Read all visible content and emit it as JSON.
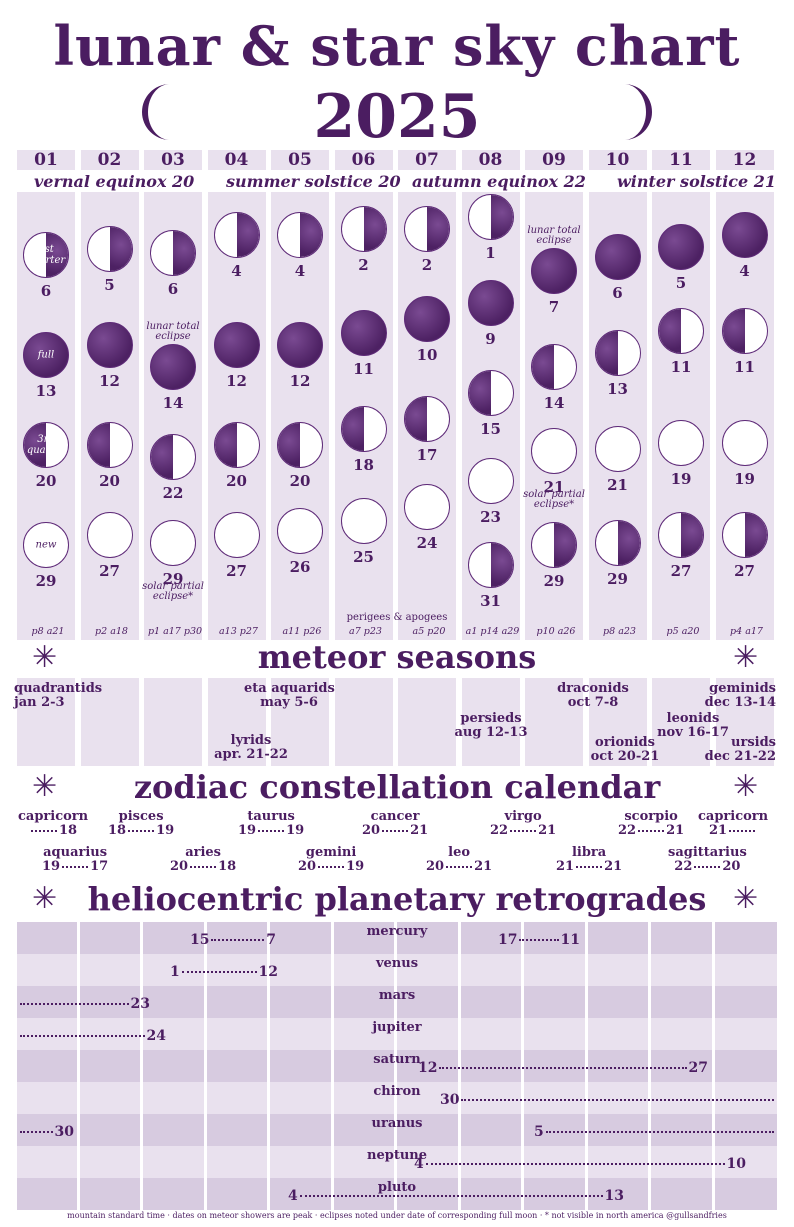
{
  "title": "lunar & star sky chart",
  "year": "2025",
  "months": [
    "01",
    "02",
    "03",
    "04",
    "05",
    "06",
    "07",
    "08",
    "09",
    "10",
    "11",
    "12"
  ],
  "seasons": [
    {
      "label": "vernal equinox",
      "day": "20"
    },
    {
      "label": "summer solstice",
      "day": "20"
    },
    {
      "label": "autumn equinox",
      "day": "22"
    },
    {
      "label": "winter solstice",
      "day": "21"
    }
  ],
  "moons": [
    {
      "month": "01",
      "day": "6",
      "phase": "first-quarter",
      "text": "1st quarter"
    },
    {
      "month": "01",
      "day": "13",
      "phase": "full",
      "text": "full"
    },
    {
      "month": "01",
      "day": "20",
      "phase": "third-quarter",
      "text": "3rd quarter"
    },
    {
      "month": "01",
      "day": "29",
      "phase": "new",
      "text": "new"
    },
    {
      "month": "02",
      "day": "5",
      "phase": "first-quarter"
    },
    {
      "month": "02",
      "day": "12",
      "phase": "full"
    },
    {
      "month": "02",
      "day": "20",
      "phase": "third-quarter"
    },
    {
      "month": "02",
      "day": "27",
      "phase": "new"
    },
    {
      "month": "03",
      "day": "6",
      "phase": "first-quarter"
    },
    {
      "month": "03",
      "day": "14",
      "phase": "full",
      "note": "lunar total eclipse"
    },
    {
      "month": "03",
      "day": "22",
      "phase": "third-quarter"
    },
    {
      "month": "03",
      "day": "29",
      "phase": "new",
      "note": "solar partial eclipse*"
    },
    {
      "month": "04",
      "day": "4",
      "phase": "first-quarter"
    },
    {
      "month": "04",
      "day": "12",
      "phase": "full"
    },
    {
      "month": "04",
      "day": "20",
      "phase": "third-quarter"
    },
    {
      "month": "04",
      "day": "27",
      "phase": "new"
    },
    {
      "month": "05",
      "day": "4",
      "phase": "first-quarter"
    },
    {
      "month": "05",
      "day": "12",
      "phase": "full"
    },
    {
      "month": "05",
      "day": "20",
      "phase": "third-quarter"
    },
    {
      "month": "05",
      "day": "26",
      "phase": "new"
    },
    {
      "month": "06",
      "day": "2",
      "phase": "first-quarter"
    },
    {
      "month": "06",
      "day": "11",
      "phase": "full"
    },
    {
      "month": "06",
      "day": "18",
      "phase": "third-quarter"
    },
    {
      "month": "06",
      "day": "25",
      "phase": "new"
    },
    {
      "month": "07",
      "day": "2",
      "phase": "first-quarter"
    },
    {
      "month": "07",
      "day": "10",
      "phase": "full"
    },
    {
      "month": "07",
      "day": "17",
      "phase": "third-quarter"
    },
    {
      "month": "07",
      "day": "24",
      "phase": "new"
    },
    {
      "month": "08",
      "day": "1",
      "phase": "first-quarter"
    },
    {
      "month": "08",
      "day": "9",
      "phase": "full"
    },
    {
      "month": "08",
      "day": "15",
      "phase": "third-quarter"
    },
    {
      "month": "08",
      "day": "23",
      "phase": "new"
    },
    {
      "month": "08",
      "day": "31",
      "phase": "first-quarter"
    },
    {
      "month": "09",
      "day": "7",
      "phase": "full",
      "note": "lunar total eclipse"
    },
    {
      "month": "09",
      "day": "14",
      "phase": "third-quarter"
    },
    {
      "month": "09",
      "day": "21",
      "phase": "new",
      "note": "solar partial eclipse*"
    },
    {
      "month": "09",
      "day": "29",
      "phase": "first-quarter"
    },
    {
      "month": "10",
      "day": "6",
      "phase": "full"
    },
    {
      "month": "10",
      "day": "13",
      "phase": "third-quarter"
    },
    {
      "month": "10",
      "day": "21",
      "phase": "new"
    },
    {
      "month": "10",
      "day": "29",
      "phase": "first-quarter"
    },
    {
      "month": "11",
      "day": "5",
      "phase": "full"
    },
    {
      "month": "11",
      "day": "11",
      "phase": "third-quarter"
    },
    {
      "month": "11",
      "day": "19",
      "phase": "new"
    },
    {
      "month": "11",
      "day": "27",
      "phase": "first-quarter"
    },
    {
      "month": "12",
      "day": "4",
      "phase": "full"
    },
    {
      "month": "12",
      "day": "11",
      "phase": "third-quarter"
    },
    {
      "month": "12",
      "day": "19",
      "phase": "new"
    },
    {
      "month": "12",
      "day": "27",
      "phase": "first-quarter"
    }
  ],
  "perigees_label": "perigees & apogees",
  "perigees": [
    [
      "p8",
      "a21"
    ],
    [
      "p2",
      "a18"
    ],
    [
      "p1",
      "a17",
      "p30"
    ],
    [
      "a13",
      "p27"
    ],
    [
      "a11",
      "p26"
    ],
    [
      "a7",
      "p23"
    ],
    [
      "a5",
      "p20"
    ],
    [
      "a1",
      "p14",
      "a29"
    ],
    [
      "p10",
      "a26"
    ],
    [
      "p8",
      "a23"
    ],
    [
      "p5",
      "a20"
    ],
    [
      "p4",
      "a17"
    ]
  ],
  "meteor_title": "meteor seasons",
  "meteors": [
    {
      "name": "quadrantids",
      "date": "jan 2-3"
    },
    {
      "name": "lyrids",
      "date": "apr. 21-22"
    },
    {
      "name": "eta aquarids",
      "date": "may 5-6"
    },
    {
      "name": "persieds",
      "date": "aug 12-13"
    },
    {
      "name": "draconids",
      "date": "oct 7-8"
    },
    {
      "name": "orionids",
      "date": "oct 20-21"
    },
    {
      "name": "leonids",
      "date": "nov 16-17"
    },
    {
      "name": "geminids",
      "date": "dec 13-14"
    },
    {
      "name": "ursids",
      "date": "dec 21-22"
    }
  ],
  "zodiac_title": "zodiac constellation calendar",
  "zodiac": [
    {
      "name": "capricorn",
      "start": "",
      "end": "18"
    },
    {
      "name": "aquarius",
      "start": "19",
      "end": "17"
    },
    {
      "name": "pisces",
      "start": "18",
      "end": "19"
    },
    {
      "name": "aries",
      "start": "20",
      "end": "18"
    },
    {
      "name": "taurus",
      "start": "19",
      "end": "19"
    },
    {
      "name": "gemini",
      "start": "20",
      "end": "19"
    },
    {
      "name": "cancer",
      "start": "20",
      "end": "21"
    },
    {
      "name": "leo",
      "start": "20",
      "end": "21"
    },
    {
      "name": "virgo",
      "start": "22",
      "end": "21"
    },
    {
      "name": "libra",
      "start": "21",
      "end": "21"
    },
    {
      "name": "scorpio",
      "start": "22",
      "end": "21"
    },
    {
      "name": "sagittarius",
      "start": "22",
      "end": "20"
    },
    {
      "name": "capricorn",
      "start": "21",
      "end": ""
    }
  ],
  "retro_title": "heliocentric planetary retrogrades",
  "planets": [
    {
      "name": "mercury",
      "ranges": [
        {
          "start": "15",
          "end": "7"
        },
        {
          "start": "17",
          "end": "11"
        }
      ]
    },
    {
      "name": "venus",
      "ranges": [
        {
          "start": "1",
          "end": "12"
        }
      ]
    },
    {
      "name": "mars",
      "ranges": [
        {
          "start": "",
          "end": "23"
        }
      ]
    },
    {
      "name": "jupiter",
      "ranges": [
        {
          "start": "",
          "end": "24"
        }
      ]
    },
    {
      "name": "saturn",
      "ranges": [
        {
          "start": "12",
          "end": "27"
        }
      ]
    },
    {
      "name": "chiron",
      "ranges": [
        {
          "start": "30",
          "end": ""
        }
      ]
    },
    {
      "name": "uranus",
      "ranges": [
        {
          "start": "",
          "end": "30"
        },
        {
          "start": "5",
          "end": ""
        }
      ]
    },
    {
      "name": "neptune",
      "ranges": [
        {
          "start": "4",
          "end": "10"
        }
      ]
    },
    {
      "name": "pluto",
      "ranges": [
        {
          "start": "4",
          "end": "13"
        }
      ]
    }
  ],
  "footer": "mountain standard time · dates on meteor showers are peak · eclipses noted under date of corresponding full moon · * not visible in north america @gullsandfries",
  "colors": {
    "ink": "#4b1d61",
    "column": "#e9e1ee",
    "stripe": "#d7cbe0",
    "moon": "#5a2774"
  }
}
